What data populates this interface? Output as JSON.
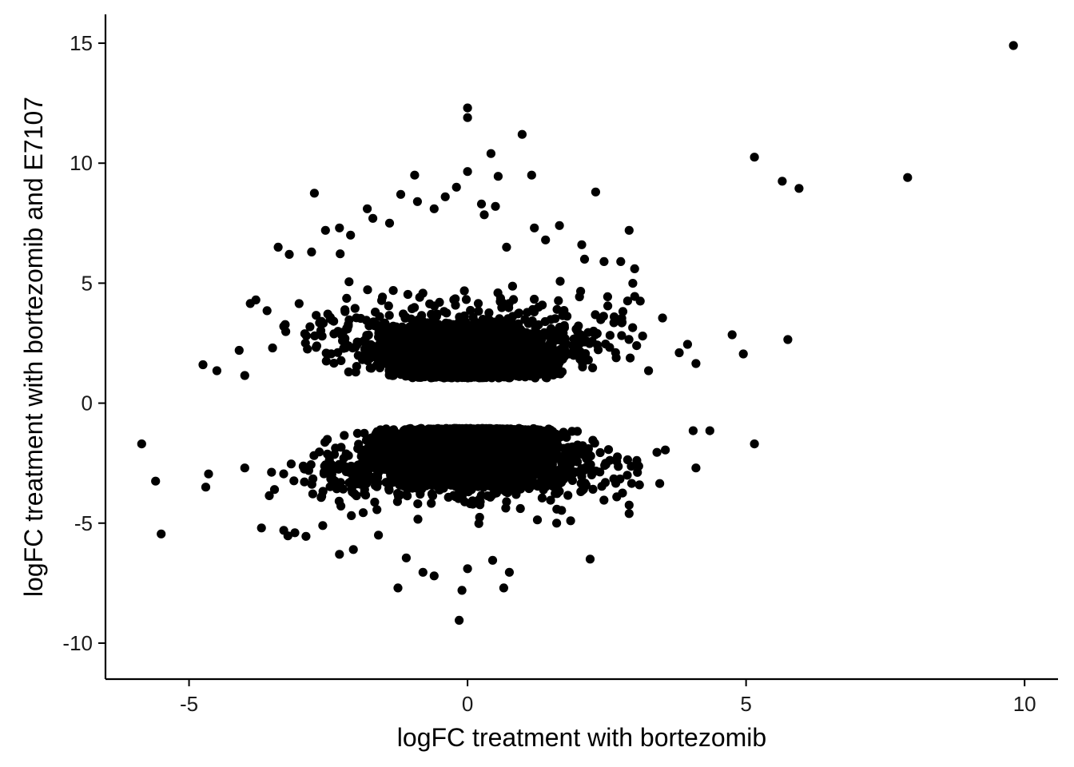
{
  "chart_data": {
    "type": "scatter",
    "title": "",
    "xlabel": "logFC treatment with bortezomib",
    "ylabel": "logFC treatment with bortezomib and E7107",
    "xlim": [
      -6.5,
      10.6
    ],
    "ylim": [
      -11.5,
      16.2
    ],
    "x_ticks": [
      -5,
      0,
      5,
      10
    ],
    "x_tick_labels": [
      "-5",
      "0",
      "5",
      "10"
    ],
    "y_ticks": [
      -10,
      -5,
      0,
      5,
      10,
      15
    ],
    "y_tick_labels": [
      "-10",
      "-5",
      "0",
      "5",
      "10",
      "15"
    ],
    "grid": false,
    "legend": "none",
    "point_color": "#000000",
    "series": [
      {
        "x": [
          9.8,
          0.0,
          0.0,
          0.98,
          0.42,
          5.15,
          0.0,
          1.15,
          0.55,
          -0.95,
          5.65,
          7.9,
          5.95,
          -2.75,
          2.3,
          0.3,
          -1.7,
          4.75,
          5.75,
          4.95,
          3.5,
          2.9,
          3.0,
          2.75,
          -3.4,
          -3.9,
          -4.75,
          -4.5,
          -3.2,
          -2.8,
          -2.55,
          -2.3,
          -3.8,
          -3.6,
          -4.1,
          -4.0,
          -3.5,
          -3.3,
          3.8,
          3.95,
          4.1,
          3.25,
          3.1,
          2.45,
          2.1,
          -0.4,
          0.25,
          0.7,
          -0.6,
          -1.2,
          1.4,
          1.65,
          2.05,
          -1.4,
          -1.8,
          -2.1,
          -0.2,
          0.5,
          -0.9,
          1.2,
          -5.85,
          -5.6,
          -5.5,
          -4.65,
          -4.7,
          -4.0,
          -3.7,
          -3.3,
          -2.9,
          -2.6,
          -2.3,
          5.15,
          4.35,
          4.05,
          4.1,
          3.55,
          3.45,
          3.4,
          2.9,
          2.9,
          2.2,
          0.65,
          0.75,
          -0.1,
          -0.15,
          -1.25,
          -0.6,
          0.0,
          0.45,
          -1.1,
          -0.8,
          1.6,
          1.85,
          -1.6,
          -2.05,
          -3.1
        ],
        "y": [
          14.9,
          12.3,
          11.9,
          11.2,
          10.4,
          10.25,
          9.65,
          9.5,
          9.45,
          9.5,
          9.25,
          9.4,
          8.95,
          8.75,
          8.8,
          7.85,
          7.7,
          2.85,
          2.65,
          2.05,
          3.55,
          7.2,
          5.6,
          5.9,
          6.5,
          4.15,
          1.6,
          1.35,
          6.2,
          6.3,
          7.2,
          7.3,
          4.3,
          3.85,
          2.2,
          1.15,
          2.3,
          3.2,
          2.1,
          2.45,
          1.65,
          1.35,
          4.25,
          5.9,
          6.0,
          8.6,
          8.3,
          6.5,
          8.1,
          8.7,
          6.8,
          7.4,
          6.6,
          7.5,
          8.1,
          7.0,
          9.0,
          8.2,
          8.4,
          7.3,
          -1.7,
          -3.25,
          -5.45,
          -2.95,
          -3.5,
          -2.7,
          -5.2,
          -5.3,
          -5.55,
          -5.1,
          -6.3,
          -1.7,
          -1.15,
          -1.15,
          -2.7,
          -1.95,
          -3.35,
          -2.05,
          -4.6,
          -4.25,
          -6.5,
          -7.7,
          -7.05,
          -7.8,
          -9.05,
          -7.7,
          -7.2,
          -6.9,
          -6.55,
          -6.45,
          -7.05,
          -5.0,
          -4.9,
          -5.5,
          -6.1,
          -5.4
        ]
      }
    ]
  }
}
